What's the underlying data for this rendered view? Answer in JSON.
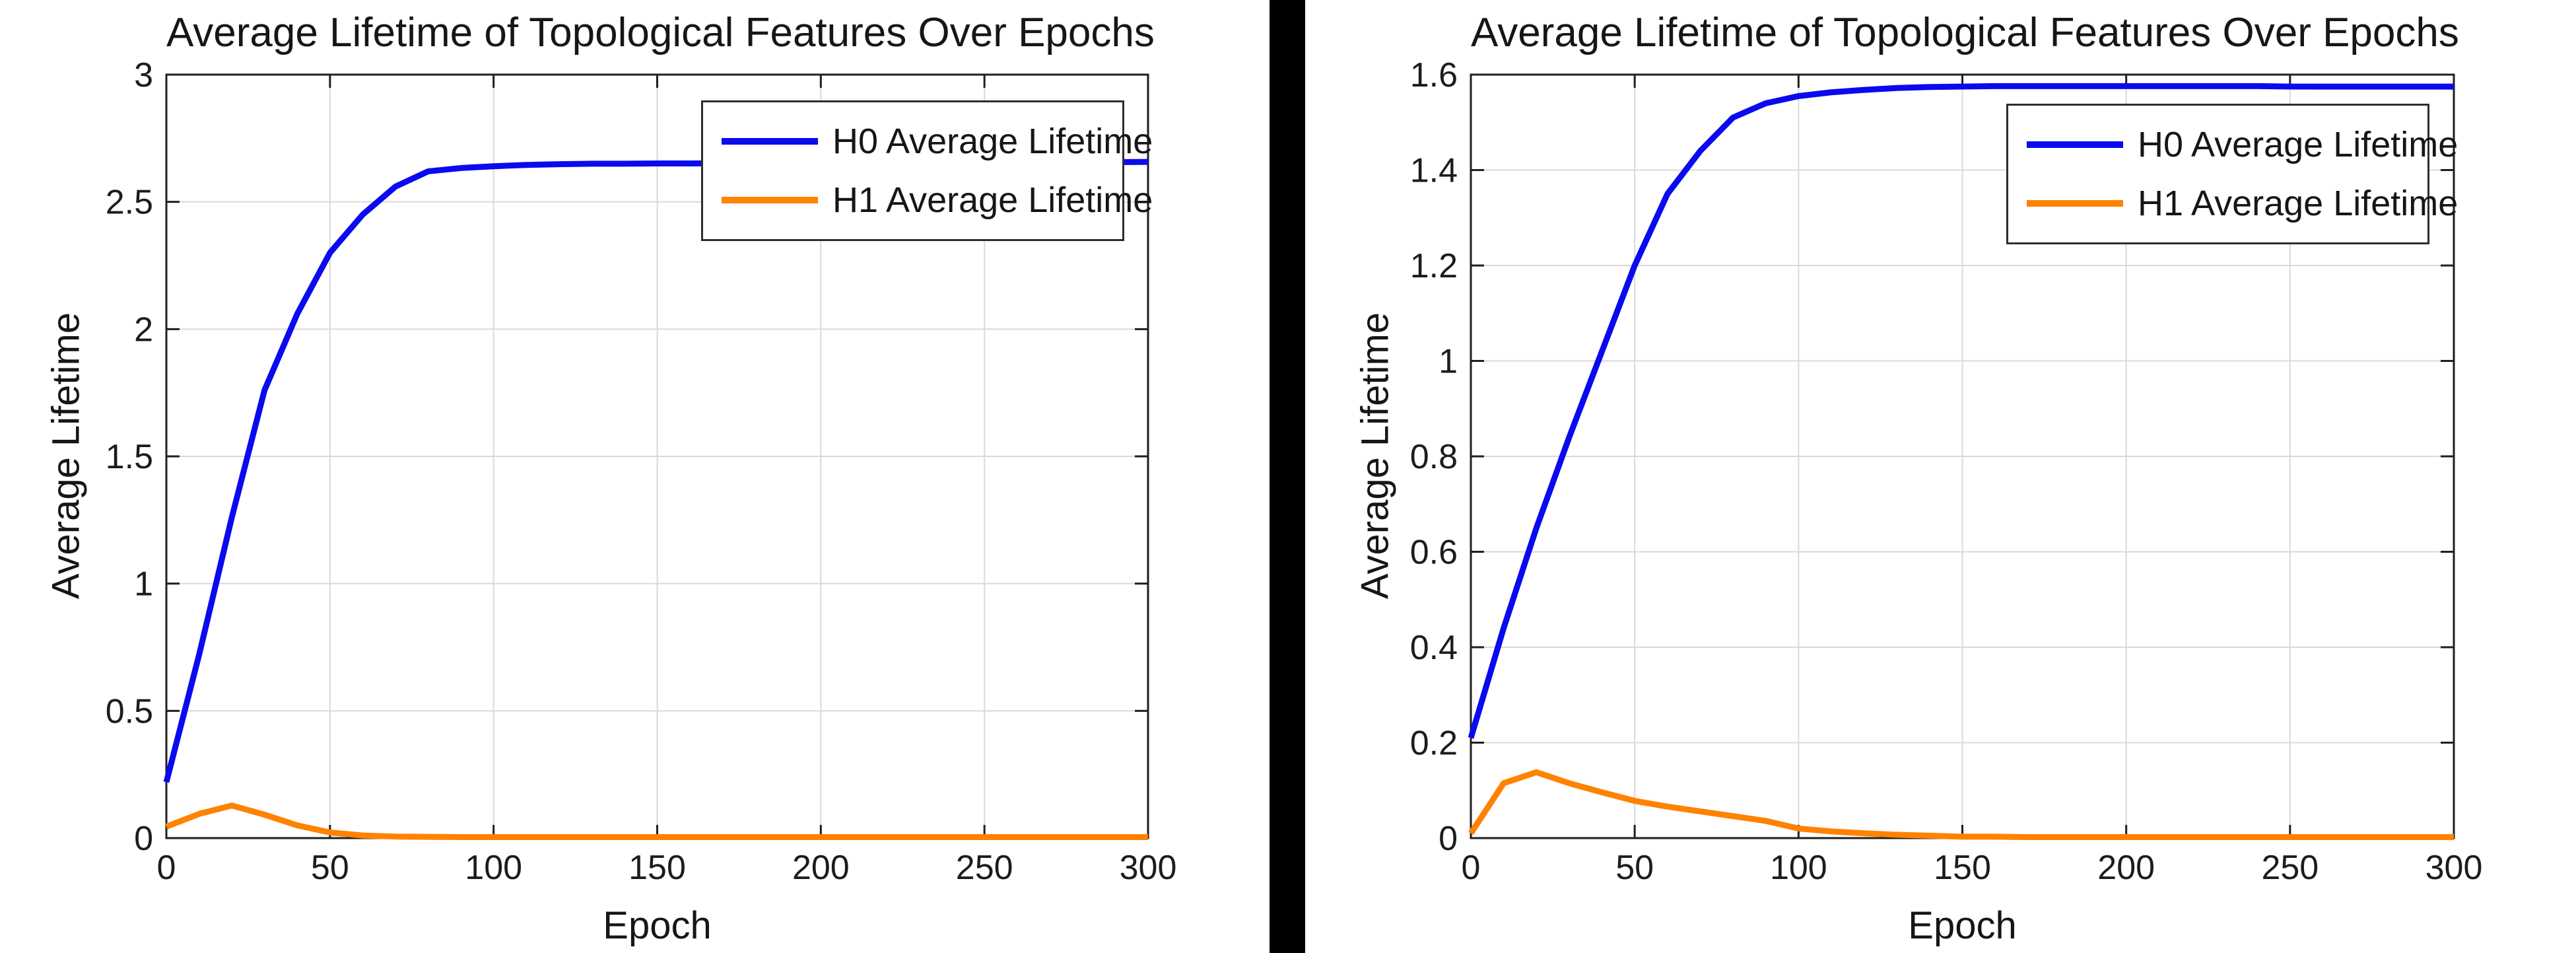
{
  "page": {
    "background_color": "#ffffff",
    "divider_color": "#000000"
  },
  "chart_data": [
    {
      "type": "line",
      "title": "Average Lifetime of Topological Features Over Epochs",
      "xlabel": "Epoch",
      "ylabel": "Average Lifetime",
      "xlim": [
        0,
        300
      ],
      "ylim": [
        0,
        3
      ],
      "xticks": [
        0,
        50,
        100,
        150,
        200,
        250,
        300
      ],
      "yticks": [
        0,
        0.5,
        1,
        1.5,
        2,
        2.5,
        3
      ],
      "grid": true,
      "legend_position": "top-right-inside",
      "x": [
        0,
        10,
        20,
        30,
        40,
        50,
        60,
        70,
        80,
        90,
        100,
        110,
        120,
        130,
        140,
        150,
        160,
        170,
        180,
        190,
        200,
        210,
        220,
        230,
        240,
        250,
        260,
        270,
        280,
        290,
        300
      ],
      "series": [
        {
          "name": "H0 Average Lifetime",
          "color": "#0a0af0",
          "values": [
            0.22,
            0.72,
            1.26,
            1.76,
            2.06,
            2.3,
            2.45,
            2.56,
            2.62,
            2.633,
            2.64,
            2.645,
            2.648,
            2.65,
            2.65,
            2.651,
            2.651,
            2.652,
            2.652,
            2.653,
            2.653,
            2.654,
            2.654,
            2.654,
            2.655,
            2.655,
            2.655,
            2.656,
            2.656,
            2.656,
            2.657
          ]
        },
        {
          "name": "H1 Average Lifetime",
          "color": "#ff8200",
          "values": [
            0.045,
            0.095,
            0.128,
            0.092,
            0.05,
            0.022,
            0.01,
            0.006,
            0.005,
            0.004,
            0.004,
            0.004,
            0.004,
            0.004,
            0.004,
            0.004,
            0.004,
            0.004,
            0.004,
            0.004,
            0.004,
            0.004,
            0.004,
            0.004,
            0.004,
            0.004,
            0.004,
            0.004,
            0.004,
            0.004,
            0.004
          ]
        }
      ]
    },
    {
      "type": "line",
      "title": "Average Lifetime of Topological Features Over Epochs",
      "xlabel": "Epoch",
      "ylabel": "Average Lifetime",
      "xlim": [
        0,
        300
      ],
      "ylim": [
        0,
        1.6
      ],
      "xticks": [
        0,
        50,
        100,
        150,
        200,
        250,
        300
      ],
      "yticks": [
        0,
        0.2,
        0.4,
        0.6,
        0.8,
        1,
        1.2,
        1.4,
        1.6
      ],
      "grid": true,
      "legend_position": "top-right-inside",
      "x": [
        0,
        10,
        20,
        30,
        40,
        50,
        60,
        70,
        80,
        90,
        100,
        110,
        120,
        130,
        140,
        150,
        160,
        170,
        180,
        190,
        200,
        210,
        220,
        230,
        240,
        250,
        260,
        270,
        280,
        290,
        300
      ],
      "series": [
        {
          "name": "H0 Average Lifetime",
          "color": "#0a0af0",
          "values": [
            0.21,
            0.44,
            0.65,
            0.84,
            1.02,
            1.2,
            1.35,
            1.44,
            1.51,
            1.54,
            1.555,
            1.563,
            1.568,
            1.572,
            1.574,
            1.575,
            1.576,
            1.576,
            1.576,
            1.576,
            1.576,
            1.576,
            1.576,
            1.576,
            1.576,
            1.575,
            1.575,
            1.575,
            1.575,
            1.575,
            1.575
          ]
        },
        {
          "name": "H1 Average Lifetime",
          "color": "#ff8200",
          "values": [
            0.01,
            0.115,
            0.138,
            0.115,
            0.096,
            0.078,
            0.066,
            0.056,
            0.046,
            0.036,
            0.02,
            0.014,
            0.01,
            0.007,
            0.005,
            0.003,
            0.003,
            0.002,
            0.002,
            0.002,
            0.002,
            0.002,
            0.002,
            0.002,
            0.002,
            0.002,
            0.002,
            0.002,
            0.002,
            0.002,
            0.002
          ]
        }
      ]
    }
  ]
}
